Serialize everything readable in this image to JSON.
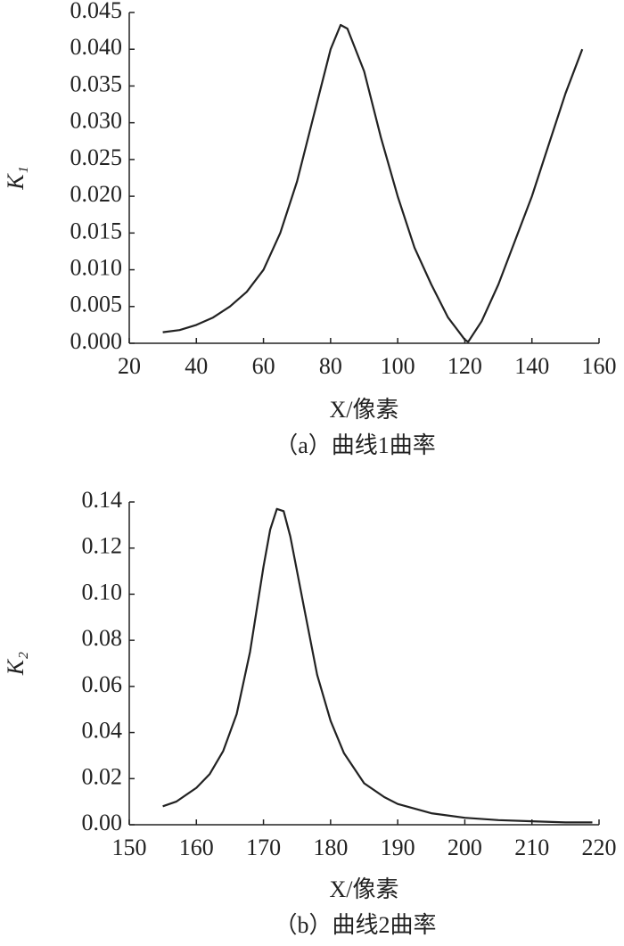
{
  "chart_data": [
    {
      "type": "line",
      "ylabel": "K₁",
      "xlabel": "X/像素",
      "caption": "（a）曲线1曲率",
      "color": "#222222",
      "x": [
        30,
        35,
        40,
        45,
        50,
        55,
        60,
        65,
        70,
        75,
        80,
        83,
        85,
        90,
        95,
        100,
        105,
        110,
        115,
        120,
        121,
        125,
        130,
        135,
        140,
        145,
        150,
        155
      ],
      "values": [
        0.0015,
        0.0018,
        0.0025,
        0.0035,
        0.005,
        0.007,
        0.01,
        0.015,
        0.022,
        0.031,
        0.04,
        0.0433,
        0.0428,
        0.037,
        0.028,
        0.02,
        0.013,
        0.008,
        0.0035,
        0.0005,
        0.0002,
        0.003,
        0.008,
        0.014,
        0.02,
        0.027,
        0.034,
        0.04
      ],
      "xlim": [
        20,
        160
      ],
      "xticks": [
        20,
        40,
        60,
        80,
        100,
        120,
        140,
        160
      ],
      "ylim": [
        0,
        0.045
      ],
      "yticks": [
        {
          "value": 0,
          "label": "0.000"
        },
        0.005,
        {
          "value": 0.01,
          "label": "0.010"
        },
        0.015,
        {
          "value": 0.02,
          "label": "0.020"
        },
        0.025,
        {
          "value": 0.03,
          "label": "0.030"
        },
        0.035,
        {
          "value": 0.04,
          "label": "0.040"
        },
        0.045
      ]
    },
    {
      "type": "line",
      "ylabel": "K₂",
      "xlabel": "X/像素",
      "caption": "（b）曲线2曲率",
      "color": "#222222",
      "x": [
        155,
        157,
        160,
        162,
        164,
        166,
        168,
        170,
        171,
        172,
        173,
        174,
        176,
        178,
        180,
        182,
        185,
        188,
        190,
        195,
        200,
        205,
        210,
        215,
        219
      ],
      "values": [
        0.008,
        0.01,
        0.016,
        0.022,
        0.032,
        0.048,
        0.075,
        0.112,
        0.128,
        0.137,
        0.136,
        0.125,
        0.095,
        0.065,
        0.045,
        0.031,
        0.018,
        0.012,
        0.009,
        0.005,
        0.003,
        0.002,
        0.0015,
        0.001,
        0.001
      ],
      "xlim": [
        150,
        220
      ],
      "xticks": [
        150,
        160,
        170,
        180,
        190,
        200,
        210,
        220
      ],
      "ylim": [
        0,
        0.14
      ],
      "yticks": [
        {
          "value": 0,
          "label": "0.00"
        },
        0.02,
        0.04,
        0.06,
        0.08,
        {
          "value": 0.1,
          "label": "0.10"
        },
        0.12,
        0.14
      ]
    }
  ]
}
